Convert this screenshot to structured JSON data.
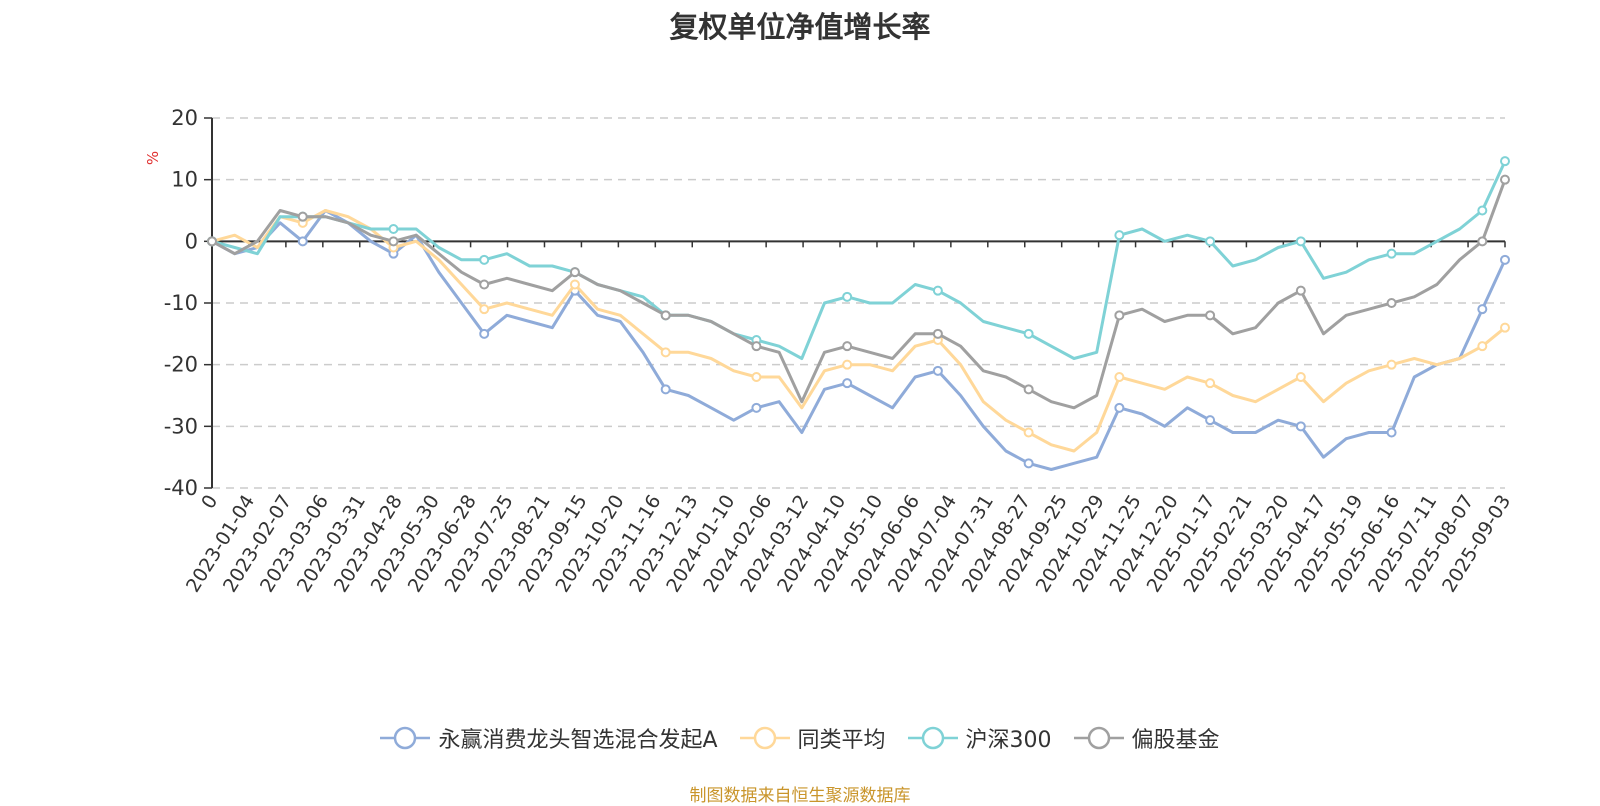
{
  "chart_data": {
    "type": "line",
    "title": "复权单位净值增长率",
    "ylabel": "%",
    "ylim": [
      -40,
      20
    ],
    "y_ticks": [
      20,
      10,
      0,
      -10,
      -20,
      -30,
      -40
    ],
    "x_tick_labels": [
      "0",
      "2023-01-04",
      "2023-02-07",
      "2023-03-06",
      "2023-03-31",
      "2023-04-28",
      "2023-05-30",
      "2023-06-28",
      "2023-07-25",
      "2023-08-21",
      "2023-09-15",
      "2023-10-20",
      "2023-11-16",
      "2023-12-13",
      "2024-01-10",
      "2024-02-06",
      "2024-03-12",
      "2024-04-10",
      "2024-05-10",
      "2024-06-06",
      "2024-07-04",
      "2024-07-31",
      "2024-08-27",
      "2024-09-25",
      "2024-10-29",
      "2024-11-25",
      "2024-12-20",
      "2025-01-17",
      "2025-02-21",
      "2025-03-20",
      "2025-04-17",
      "2025-05-19",
      "2025-06-16",
      "2025-07-11",
      "2025-08-07",
      "2025-09-03"
    ],
    "grid": true,
    "legend_position": "bottom",
    "series": [
      {
        "name": "永赢消费龙头智选混合发起A",
        "color": "#8fabd9",
        "values": [
          0,
          -2,
          -1,
          3,
          0,
          5,
          3,
          0,
          -2,
          1,
          -5,
          -10,
          -15,
          -12,
          -13,
          -14,
          -8,
          -12,
          -13,
          -18,
          -24,
          -25,
          -27,
          -29,
          -27,
          -26,
          -31,
          -24,
          -23,
          -25,
          -27,
          -22,
          -21,
          -25,
          -30,
          -34,
          -36,
          -37,
          -36,
          -35,
          -27,
          -28,
          -30,
          -27,
          -29,
          -31,
          -31,
          -29,
          -30,
          -35,
          -32,
          -31,
          -31,
          -22,
          -20,
          -19,
          -11,
          -3
        ]
      },
      {
        "name": "同类平均",
        "color": "#ffd899",
        "values": [
          0,
          1,
          -1,
          4,
          3,
          5,
          4,
          2,
          -1,
          0,
          -3,
          -7,
          -11,
          -10,
          -11,
          -12,
          -7,
          -11,
          -12,
          -15,
          -18,
          -18,
          -19,
          -21,
          -22,
          -22,
          -27,
          -21,
          -20,
          -20,
          -21,
          -17,
          -16,
          -20,
          -26,
          -29,
          -31,
          -33,
          -34,
          -31,
          -22,
          -23,
          -24,
          -22,
          -23,
          -25,
          -26,
          -24,
          -22,
          -26,
          -23,
          -21,
          -20,
          -19,
          -20,
          -19,
          -17,
          -14
        ]
      },
      {
        "name": "沪深300",
        "color": "#7fd2d6",
        "values": [
          0,
          -1,
          -2,
          4,
          4,
          4,
          3,
          2,
          2,
          2,
          -1,
          -3,
          -3,
          -2,
          -4,
          -4,
          -5,
          -7,
          -8,
          -9,
          -12,
          -12,
          -13,
          -15,
          -16,
          -17,
          -19,
          -10,
          -9,
          -10,
          -10,
          -7,
          -8,
          -10,
          -13,
          -14,
          -15,
          -17,
          -19,
          -18,
          1,
          2,
          0,
          1,
          0,
          -4,
          -3,
          -1,
          0,
          -6,
          -5,
          -3,
          -2,
          -2,
          0,
          2,
          5,
          13
        ]
      },
      {
        "name": "偏股基金",
        "color": "#a0a0a0",
        "values": [
          0,
          -2,
          0,
          5,
          4,
          4,
          3,
          1,
          0,
          1,
          -2,
          -5,
          -7,
          -6,
          -7,
          -8,
          -5,
          -7,
          -8,
          -10,
          -12,
          -12,
          -13,
          -15,
          -17,
          -18,
          -26,
          -18,
          -17,
          -18,
          -19,
          -15,
          -15,
          -17,
          -21,
          -22,
          -24,
          -26,
          -27,
          -25,
          -12,
          -11,
          -13,
          -12,
          -12,
          -15,
          -14,
          -10,
          -8,
          -15,
          -12,
          -11,
          -10,
          -9,
          -7,
          -3,
          0,
          10
        ]
      }
    ]
  },
  "source_note": "制图数据来自恒生聚源数据库"
}
